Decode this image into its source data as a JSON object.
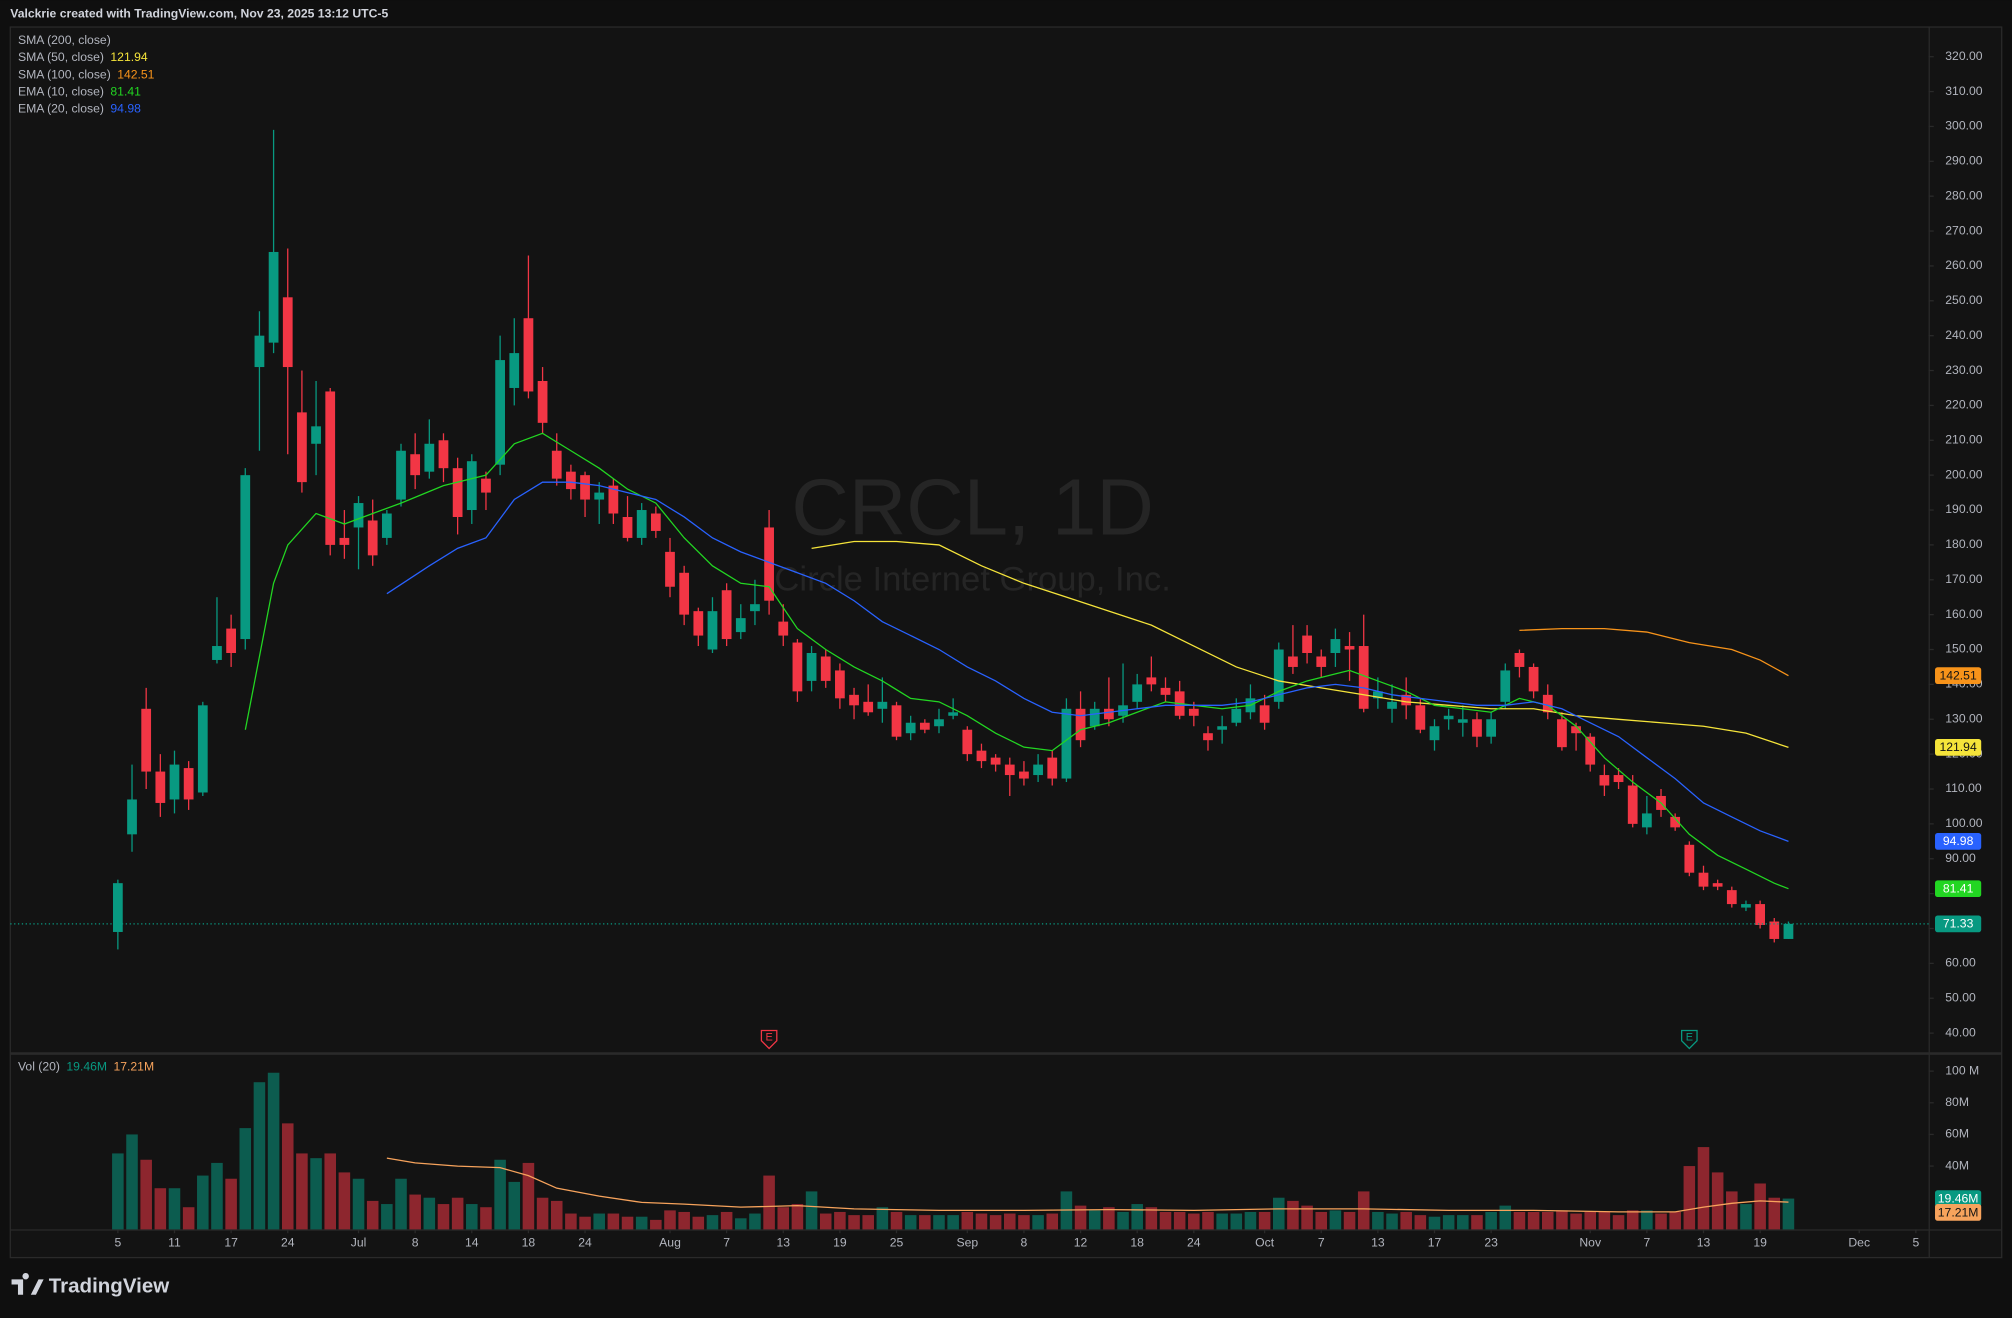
{
  "header": {
    "text": "Valckrie created with TradingView.com, Nov 23, 2025 13:12 UTC-5"
  },
  "brand": "TradingView",
  "chart_data": {
    "type": "candlestick",
    "title": "CRCL, 1D",
    "subtitle": "Circle Internet Group, Inc.",
    "up_color": "#089981",
    "down_color": "#f23645",
    "candles": [
      [
        69,
        84,
        64,
        83
      ],
      [
        97,
        117,
        92,
        107
      ],
      [
        133,
        139,
        110,
        115
      ],
      [
        115,
        120,
        102,
        106
      ],
      [
        107,
        121,
        103,
        117
      ],
      [
        116,
        118,
        104,
        107
      ],
      [
        109,
        135,
        108,
        134
      ],
      [
        147,
        165,
        146,
        151
      ],
      [
        156,
        160,
        145,
        149
      ],
      [
        153,
        202,
        150,
        200
      ],
      [
        231,
        247,
        207,
        240
      ],
      [
        238,
        299,
        235,
        264
      ],
      [
        251,
        265,
        206,
        231
      ],
      [
        218,
        230,
        195,
        198
      ],
      [
        209,
        227,
        200,
        214
      ],
      [
        224,
        225,
        177,
        180
      ],
      [
        182,
        190,
        176,
        180
      ],
      [
        185,
        194,
        173,
        192
      ],
      [
        187,
        193,
        174,
        177
      ],
      [
        182,
        190,
        180,
        189
      ],
      [
        193,
        209,
        191,
        207
      ],
      [
        206,
        212,
        196,
        200
      ],
      [
        201,
        216,
        199,
        209
      ],
      [
        210,
        212,
        198,
        202
      ],
      [
        202,
        205,
        183,
        188
      ],
      [
        190,
        206,
        186,
        204
      ],
      [
        199,
        201,
        190,
        195
      ],
      [
        203,
        240,
        200,
        233
      ],
      [
        225,
        245,
        220,
        235
      ],
      [
        245,
        263,
        222,
        224
      ],
      [
        227,
        231,
        212,
        215
      ],
      [
        207,
        212,
        197,
        199
      ],
      [
        201,
        203,
        193,
        196
      ],
      [
        200,
        201,
        188,
        193
      ],
      [
        193,
        198,
        186,
        195
      ],
      [
        197,
        199,
        186,
        189
      ],
      [
        188,
        194,
        181,
        182
      ],
      [
        182,
        192,
        180,
        190
      ],
      [
        189,
        191,
        182,
        184
      ],
      [
        178,
        182,
        165,
        168
      ],
      [
        172,
        174,
        157,
        160
      ],
      [
        161,
        162,
        151,
        154
      ],
      [
        150,
        165,
        149,
        161
      ],
      [
        167,
        169,
        151,
        153
      ],
      [
        155,
        163,
        153,
        159
      ],
      [
        161,
        170,
        157,
        163
      ],
      [
        185,
        190,
        160,
        164
      ],
      [
        158,
        163,
        151,
        154
      ],
      [
        152,
        153,
        135,
        138
      ],
      [
        141,
        151,
        138,
        149
      ],
      [
        148,
        150,
        139,
        141
      ],
      [
        144,
        146,
        133,
        136
      ],
      [
        137,
        139,
        130,
        134
      ],
      [
        135,
        140,
        131,
        132
      ],
      [
        133,
        142,
        129,
        135
      ],
      [
        134,
        135,
        124,
        125
      ],
      [
        126,
        131,
        124,
        129
      ],
      [
        129,
        130,
        126,
        127
      ],
      [
        128,
        133,
        126,
        130
      ],
      [
        131,
        136,
        130,
        132
      ],
      [
        127,
        128,
        118,
        120
      ],
      [
        121,
        123,
        116,
        118
      ],
      [
        119,
        120,
        115,
        117
      ],
      [
        117,
        119,
        108,
        114
      ],
      [
        115,
        118,
        111,
        113
      ],
      [
        114,
        120,
        112,
        117
      ],
      [
        119,
        121,
        111,
        113
      ],
      [
        113,
        136,
        112,
        133
      ],
      [
        133,
        138,
        122,
        124
      ],
      [
        128,
        135,
        127,
        133
      ],
      [
        133,
        142,
        128,
        130
      ],
      [
        131,
        146,
        129,
        134
      ],
      [
        135,
        143,
        133,
        140
      ],
      [
        142,
        148,
        138,
        140
      ],
      [
        139,
        142,
        135,
        137
      ],
      [
        138,
        141,
        130,
        131
      ],
      [
        133,
        135,
        128,
        131
      ],
      [
        126,
        128,
        121,
        124
      ],
      [
        127,
        131,
        123,
        128
      ],
      [
        129,
        136,
        128,
        133
      ],
      [
        132,
        140,
        130,
        136
      ],
      [
        134,
        137,
        127,
        129
      ],
      [
        135,
        152,
        133,
        150
      ],
      [
        148,
        157,
        143,
        145
      ],
      [
        154,
        157,
        146,
        149
      ],
      [
        148,
        150,
        142,
        145
      ],
      [
        149,
        156,
        145,
        153
      ],
      [
        151,
        155,
        141,
        150
      ],
      [
        151,
        160,
        132,
        133
      ],
      [
        136,
        142,
        133,
        138
      ],
      [
        133,
        140,
        129,
        135
      ],
      [
        137,
        142,
        130,
        134
      ],
      [
        134,
        136,
        126,
        127
      ],
      [
        124,
        130,
        121,
        128
      ],
      [
        130,
        133,
        127,
        131
      ],
      [
        129,
        134,
        125,
        130
      ],
      [
        130,
        132,
        122,
        125
      ],
      [
        125,
        132,
        123,
        130
      ],
      [
        135,
        146,
        133,
        144
      ],
      [
        149,
        150,
        142,
        145
      ],
      [
        145,
        146,
        136,
        138
      ],
      [
        137,
        140,
        130,
        132
      ],
      [
        130,
        132,
        121,
        122
      ],
      [
        128,
        129,
        121,
        126
      ],
      [
        125,
        126,
        115,
        117
      ],
      [
        114,
        117,
        108,
        111
      ],
      [
        114,
        116,
        110,
        112
      ],
      [
        111,
        114,
        99,
        100
      ],
      [
        99,
        108,
        97,
        103
      ],
      [
        108,
        110,
        102,
        104
      ],
      [
        102,
        103,
        98,
        99
      ],
      [
        94,
        95,
        85,
        86
      ],
      [
        86,
        88,
        81,
        82
      ],
      [
        83,
        84,
        81,
        82
      ],
      [
        81,
        82,
        76,
        77
      ],
      [
        76,
        78,
        75,
        77
      ],
      [
        77,
        78,
        70,
        71
      ],
      [
        72,
        73,
        66,
        67
      ],
      [
        67,
        72,
        67,
        71.33
      ]
    ],
    "xlim": [
      -7.6,
      127.9
    ],
    "xticks": [
      {
        "value": 0,
        "label": "5"
      },
      {
        "value": 4,
        "label": "11"
      },
      {
        "value": 8,
        "label": "17"
      },
      {
        "value": 12,
        "label": "24"
      },
      {
        "value": 17,
        "label": "Jul"
      },
      {
        "value": 21,
        "label": "8"
      },
      {
        "value": 25,
        "label": "14"
      },
      {
        "value": 29,
        "label": "18"
      },
      {
        "value": 33,
        "label": "24"
      },
      {
        "value": 39,
        "label": "Aug"
      },
      {
        "value": 43,
        "label": "7"
      },
      {
        "value": 47,
        "label": "13"
      },
      {
        "value": 51,
        "label": "19"
      },
      {
        "value": 55,
        "label": "25"
      },
      {
        "value": 60,
        "label": "Sep"
      },
      {
        "value": 64,
        "label": "8"
      },
      {
        "value": 68,
        "label": "12"
      },
      {
        "value": 72,
        "label": "18"
      },
      {
        "value": 76,
        "label": "24"
      },
      {
        "value": 81,
        "label": "Oct"
      },
      {
        "value": 85,
        "label": "7"
      },
      {
        "value": 89,
        "label": "13"
      },
      {
        "value": 93,
        "label": "17"
      },
      {
        "value": 97,
        "label": "23"
      },
      {
        "value": 104,
        "label": "Nov"
      },
      {
        "value": 108,
        "label": "7"
      },
      {
        "value": 112,
        "label": "13"
      },
      {
        "value": 116,
        "label": "19"
      },
      {
        "value": 123,
        "label": "Dec"
      },
      {
        "value": 127,
        "label": "5"
      }
    ],
    "ylim": [
      34.5,
      328.5
    ],
    "yticks": [
      {
        "value": 40,
        "label": "40.00"
      },
      {
        "value": 50,
        "label": "50.00"
      },
      {
        "value": 60,
        "label": "60.00"
      },
      {
        "value": 70,
        "label": "70.00"
      },
      {
        "value": 80,
        "label": "80.00"
      },
      {
        "value": 90,
        "label": "90.00"
      },
      {
        "value": 100,
        "label": "100.00"
      },
      {
        "value": 110,
        "label": "110.00"
      },
      {
        "value": 120,
        "label": "120.00"
      },
      {
        "value": 130,
        "label": "130.00"
      },
      {
        "value": 140,
        "label": "140.00"
      },
      {
        "value": 150,
        "label": "150.00"
      },
      {
        "value": 160,
        "label": "160.00"
      },
      {
        "value": 170,
        "label": "170.00"
      },
      {
        "value": 180,
        "label": "180.00"
      },
      {
        "value": 190,
        "label": "190.00"
      },
      {
        "value": 200,
        "label": "200.00"
      },
      {
        "value": 210,
        "label": "210.00"
      },
      {
        "value": 220,
        "label": "220.00"
      },
      {
        "value": 230,
        "label": "230.00"
      },
      {
        "value": 240,
        "label": "240.00"
      },
      {
        "value": 250,
        "label": "250.00"
      },
      {
        "value": 260,
        "label": "260.00"
      },
      {
        "value": 270,
        "label": "270.00"
      },
      {
        "value": 280,
        "label": "280.00"
      },
      {
        "value": 290,
        "label": "290.00"
      },
      {
        "value": 300,
        "label": "300.00"
      },
      {
        "value": 310,
        "label": "310.00"
      },
      {
        "value": 320,
        "label": "320.00"
      }
    ],
    "events": [
      {
        "label": "E",
        "x": 46,
        "color": "#f23645"
      },
      {
        "label": "E",
        "x": 111,
        "color": "#089981"
      }
    ],
    "indicators": [
      {
        "name": "SMA (200, close)"
      },
      {
        "name": "SMA (50, close)",
        "color": "#f5e43a",
        "x": [
          49,
          52,
          55,
          58,
          61,
          64,
          67,
          70,
          73,
          76,
          79,
          82,
          85,
          88,
          91,
          94,
          97,
          100,
          103,
          106,
          109,
          112,
          115,
          118
        ],
        "values": [
          179,
          181,
          181,
          180,
          174,
          169,
          165,
          161,
          157,
          151,
          145,
          141,
          139,
          137,
          135,
          134,
          133,
          133,
          131,
          130,
          129,
          128,
          126,
          121.94
        ]
      },
      {
        "name": "SMA (100, close)",
        "color": "#f7931a",
        "x": [
          99,
          102,
          105,
          108,
          111,
          114,
          116,
          118
        ],
        "values": [
          155.5,
          156,
          156,
          155,
          152,
          150,
          147,
          142.51
        ]
      },
      {
        "name": "EMA (10, close)",
        "color": "#22d622",
        "x": [
          9,
          11,
          12,
          14,
          16,
          18,
          20,
          23,
          26,
          28,
          30,
          32,
          34,
          36,
          38,
          40,
          42,
          44,
          46,
          48,
          50,
          52,
          54,
          56,
          58,
          60,
          62,
          64,
          66,
          68,
          70,
          72,
          74,
          76,
          78,
          80,
          82,
          84,
          86,
          87,
          89,
          91,
          93,
          95,
          97,
          99,
          101,
          103,
          105,
          107,
          109,
          111,
          113,
          115,
          117,
          118
        ],
        "values": [
          127,
          169,
          180,
          189,
          186,
          189,
          192,
          197,
          200,
          209,
          212,
          207,
          202,
          196,
          192,
          182,
          174,
          169,
          168,
          156,
          150,
          145,
          141,
          136,
          135,
          131,
          126,
          122,
          121,
          127,
          129,
          132,
          135,
          134,
          133,
          134,
          138,
          141,
          143,
          144,
          141,
          138,
          134,
          133,
          132,
          136,
          134,
          128,
          119,
          112,
          106,
          97,
          91,
          87,
          83,
          81.41
        ]
      },
      {
        "name": "EMA (20, close)",
        "color": "#2962ff",
        "x": [
          19,
          22,
          24,
          26,
          28,
          30,
          32,
          34,
          36,
          38,
          40,
          42,
          44,
          46,
          48,
          50,
          52,
          54,
          56,
          58,
          60,
          62,
          64,
          66,
          68,
          70,
          72,
          74,
          76,
          78,
          80,
          82,
          84,
          86,
          88,
          90,
          92,
          94,
          96,
          98,
          100,
          102,
          104,
          106,
          108,
          110,
          112,
          114,
          116,
          118
        ],
        "values": [
          166,
          174,
          179,
          182,
          193,
          198,
          198,
          197,
          195,
          193,
          188,
          182,
          178,
          175,
          172,
          169,
          164,
          158,
          154,
          150,
          145,
          141,
          136,
          132,
          131,
          132,
          133,
          134,
          134,
          134,
          135,
          137,
          139,
          140,
          139,
          137,
          136,
          135,
          134,
          134,
          135,
          133,
          129,
          125,
          119,
          113,
          106,
          102,
          98,
          94.98
        ]
      }
    ],
    "volume": {
      "name": "Vol (20)",
      "values": [
        48,
        60,
        44,
        26,
        26,
        14,
        34,
        42,
        32,
        64,
        93,
        99,
        67,
        48,
        45,
        48,
        36,
        32,
        18,
        16,
        32,
        22,
        20,
        16,
        20,
        16,
        14,
        44,
        30,
        42,
        20,
        18,
        10,
        8,
        10,
        10,
        8,
        8,
        6,
        12,
        11,
        8,
        9,
        11,
        7,
        10,
        34,
        14,
        16,
        24,
        10,
        11,
        9,
        9,
        14,
        11,
        9,
        9,
        9,
        9,
        11,
        10,
        9,
        10,
        9,
        9,
        10,
        24,
        15,
        12,
        14,
        11,
        16,
        14,
        11,
        11,
        10,
        11,
        10,
        10,
        11,
        11,
        20,
        18,
        15,
        11,
        12,
        11,
        24,
        11,
        10,
        11,
        9,
        8,
        9,
        9,
        9,
        11,
        15,
        11,
        11,
        11,
        12,
        10,
        11,
        11,
        9,
        12,
        12,
        10,
        11,
        40,
        52,
        36,
        24,
        16,
        29,
        20,
        19.46
      ],
      "last_label": "19.46M",
      "ylim": [
        0,
        110.3
      ],
      "yticks": [
        {
          "value": 40,
          "label": "40M"
        },
        {
          "value": 60,
          "label": "60M"
        },
        {
          "value": 80,
          "label": "80M"
        },
        {
          "value": 100,
          "label": "100 M"
        }
      ],
      "ma": {
        "color": "#f7a35c",
        "x": [
          19,
          21,
          24,
          27,
          29,
          31,
          34,
          37,
          40,
          44,
          48,
          52,
          58,
          64,
          70,
          76,
          82,
          88,
          94,
          100,
          106,
          110,
          112,
          114,
          116,
          118
        ],
        "values": [
          45,
          42,
          40,
          39,
          34,
          26,
          21,
          17,
          16,
          14,
          15,
          13,
          12,
          12,
          12.5,
          12,
          13,
          13,
          12,
          12,
          11,
          11,
          14,
          16.5,
          18,
          17.21
        ],
        "last_label": "17.21M"
      }
    }
  }
}
